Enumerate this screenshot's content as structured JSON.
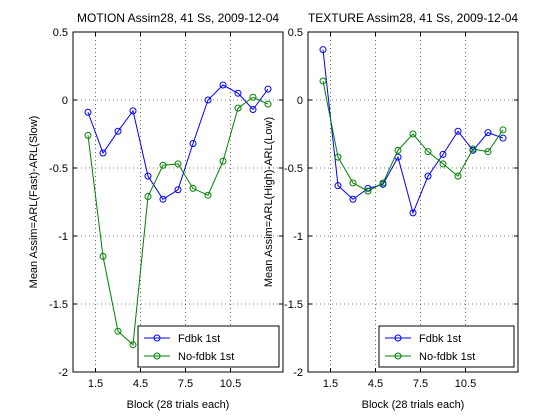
{
  "chart_data": [
    {
      "type": "line",
      "title": "MOTION Assim28, 41 Ss, 2009-12-04",
      "xlabel": "Block (28 trials each)",
      "ylabel": "Mean Assim=ARL(Fast)-ARL(Slow)",
      "xlim": [
        0,
        14
      ],
      "ylim": [
        -2,
        0.5
      ],
      "xticks": [
        1.5,
        4.5,
        7.5,
        10.5
      ],
      "xtick_labels": [
        "1.5",
        "4.5",
        "7.5",
        "10.5"
      ],
      "yticks": [
        -2,
        -1.5,
        -1,
        -0.5,
        0,
        0.5
      ],
      "ytick_labels": [
        "-2",
        "-1.5",
        "-1",
        "-0.5",
        "0",
        "0.5"
      ],
      "grid": true,
      "legend_position": "bottom-right",
      "x": [
        1,
        2,
        3,
        4,
        5,
        6,
        7,
        8,
        9,
        10,
        11,
        12,
        13
      ],
      "series": [
        {
          "name": "Fdbk 1st",
          "color": "#0000ff",
          "values": [
            -0.09,
            -0.39,
            -0.23,
            -0.08,
            -0.56,
            -0.73,
            -0.66,
            -0.32,
            0.0,
            0.11,
            0.05,
            -0.07,
            0.08
          ]
        },
        {
          "name": "No-fdbk 1st",
          "color": "#008000",
          "values": [
            -0.26,
            -1.15,
            -1.7,
            -1.8,
            -0.71,
            -0.48,
            -0.47,
            -0.65,
            -0.7,
            -0.45,
            -0.06,
            0.02,
            -0.03
          ]
        }
      ]
    },
    {
      "type": "line",
      "title": "TEXTURE Assim28, 41 Ss, 2009-12-04",
      "xlabel": "Block (28 trials each)",
      "ylabel": "Mean Assim=ARL(High)-ARL(Low)",
      "xlim": [
        0,
        14
      ],
      "ylim": [
        -2,
        0.5
      ],
      "xticks": [
        1.5,
        4.5,
        7.5,
        10.5
      ],
      "xtick_labels": [
        "1.5",
        "4.5",
        "7.5",
        "10.5"
      ],
      "yticks": [
        -2,
        -1.5,
        -1,
        -0.5,
        0,
        0.5
      ],
      "ytick_labels": [
        "-2",
        "-1.5",
        "-1",
        "-0.5",
        "0",
        "0.5"
      ],
      "grid": true,
      "legend_position": "bottom-right",
      "x": [
        1,
        2,
        3,
        4,
        5,
        6,
        7,
        8,
        9,
        10,
        11,
        12,
        13
      ],
      "series": [
        {
          "name": "Fdbk 1st",
          "color": "#0000ff",
          "values": [
            0.37,
            -0.63,
            -0.73,
            -0.65,
            -0.62,
            -0.42,
            -0.83,
            -0.56,
            -0.4,
            -0.23,
            -0.37,
            -0.24,
            -0.28
          ]
        },
        {
          "name": "No-fdbk 1st",
          "color": "#008000",
          "values": [
            0.14,
            -0.42,
            -0.61,
            -0.67,
            -0.61,
            -0.37,
            -0.25,
            -0.38,
            -0.47,
            -0.56,
            -0.36,
            -0.38,
            -0.22
          ]
        }
      ]
    }
  ]
}
